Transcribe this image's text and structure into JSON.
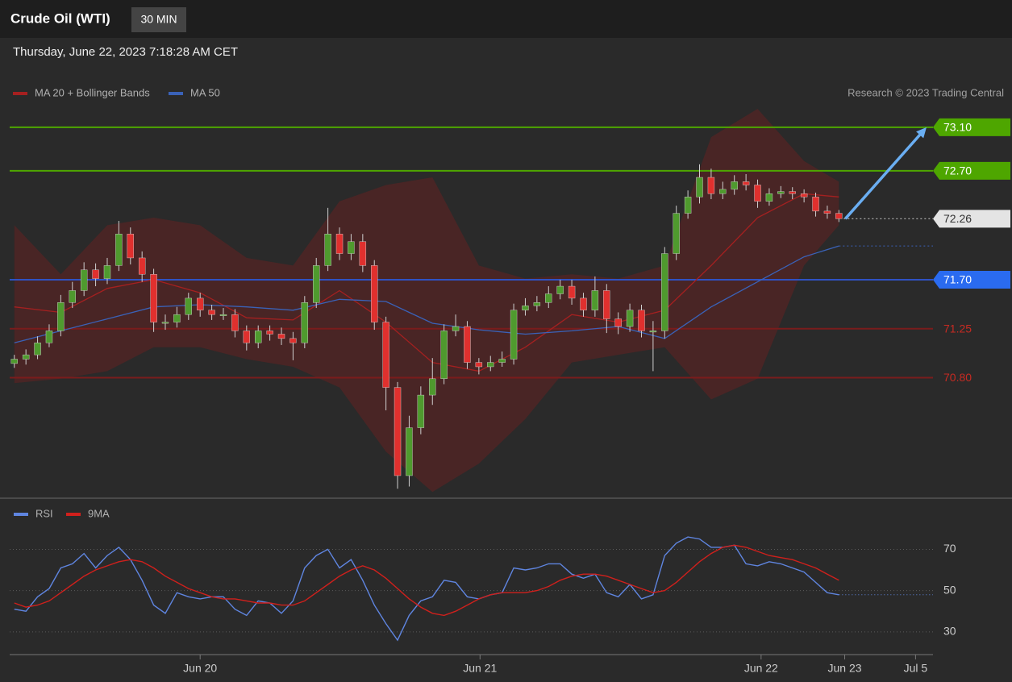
{
  "header": {
    "title": "Crude Oil (WTI)",
    "interval": "30 MIN",
    "timestamp": "Thursday, June 22, 2023 7:18:28 AM CET"
  },
  "chart_data": [
    {
      "type": "candlestick",
      "credit": "Research © 2023 Trading Central",
      "xlim": [
        -0.4,
        79.1
      ],
      "ylim": [
        69.7,
        73.64
      ],
      "up_color": "#4f9a2e",
      "down_color": "#e0302e",
      "wick_color": "#cfcfcf",
      "arrow_color": "#6aaef2",
      "x": [
        0,
        1,
        2,
        3,
        4,
        5,
        6,
        7,
        8,
        9,
        10,
        11,
        12,
        13,
        14,
        15,
        16,
        17,
        18,
        19,
        20,
        21,
        22,
        23,
        24,
        25,
        26,
        27,
        28,
        29,
        30,
        31,
        32,
        33,
        34,
        35,
        36,
        37,
        38,
        39,
        40,
        41,
        42,
        43,
        44,
        45,
        46,
        47,
        48,
        49,
        50,
        51,
        52,
        53,
        54,
        55,
        56,
        57,
        58,
        59,
        60,
        61,
        62,
        63,
        64,
        65,
        66,
        67,
        68,
        69,
        70,
        71
      ],
      "open": [
        70.93,
        70.97,
        71.01,
        71.12,
        71.23,
        71.49,
        71.6,
        71.79,
        71.71,
        71.83,
        72.12,
        71.9,
        71.75,
        71.31,
        71.31,
        71.38,
        71.53,
        71.42,
        71.38,
        71.38,
        71.23,
        71.12,
        71.23,
        71.2,
        71.16,
        71.12,
        71.49,
        71.83,
        72.12,
        71.94,
        72.05,
        71.83,
        71.31,
        70.71,
        69.9,
        70.34,
        70.64,
        70.79,
        71.23,
        71.27,
        70.94,
        70.9,
        70.94,
        70.97,
        71.42,
        71.46,
        71.49,
        71.57,
        71.64,
        71.53,
        71.42,
        71.6,
        71.34,
        71.27,
        71.42,
        71.23,
        71.23,
        71.94,
        72.31,
        72.46,
        72.64,
        72.49,
        72.53,
        72.6,
        72.57,
        72.42,
        72.49,
        72.51,
        72.49,
        72.46,
        72.33,
        72.31
      ],
      "high": [
        71.01,
        71.06,
        71.18,
        71.29,
        71.56,
        71.68,
        71.86,
        71.85,
        71.9,
        72.24,
        72.18,
        71.96,
        71.8,
        71.38,
        71.45,
        71.58,
        71.58,
        71.47,
        71.44,
        71.43,
        71.28,
        71.28,
        71.28,
        71.26,
        71.22,
        71.55,
        71.9,
        72.36,
        72.18,
        72.12,
        72.12,
        71.88,
        71.36,
        70.76,
        70.45,
        70.72,
        70.98,
        71.29,
        71.38,
        71.32,
        70.98,
        71.0,
        71.04,
        71.48,
        71.53,
        71.55,
        71.64,
        71.7,
        71.7,
        71.58,
        71.73,
        71.66,
        71.4,
        71.48,
        71.47,
        71.32,
        72.0,
        72.38,
        72.52,
        72.76,
        72.72,
        72.6,
        72.66,
        72.67,
        72.62,
        72.54,
        72.56,
        72.55,
        72.53,
        72.5,
        72.38,
        72.34
      ],
      "low": [
        70.89,
        70.92,
        70.97,
        71.08,
        71.18,
        71.44,
        71.55,
        71.64,
        71.66,
        71.78,
        71.84,
        71.68,
        71.22,
        71.24,
        71.26,
        71.33,
        71.36,
        71.33,
        71.33,
        71.17,
        71.05,
        71.07,
        71.14,
        71.1,
        70.96,
        71.07,
        71.44,
        71.78,
        71.88,
        71.88,
        71.77,
        71.24,
        70.5,
        69.78,
        69.8,
        70.28,
        70.55,
        70.74,
        71.18,
        70.88,
        70.83,
        70.86,
        70.9,
        70.92,
        71.37,
        71.41,
        71.44,
        71.52,
        71.47,
        71.36,
        71.36,
        71.21,
        71.2,
        71.22,
        71.17,
        70.86,
        71.16,
        71.88,
        72.26,
        72.4,
        72.44,
        72.44,
        72.48,
        72.52,
        72.36,
        72.38,
        72.45,
        72.44,
        72.41,
        72.28,
        72.26,
        72.23
      ],
      "close": [
        70.97,
        71.01,
        71.12,
        71.23,
        71.49,
        71.6,
        71.79,
        71.71,
        71.83,
        72.12,
        71.9,
        71.75,
        71.31,
        71.31,
        71.38,
        71.53,
        71.42,
        71.38,
        71.38,
        71.23,
        71.12,
        71.23,
        71.2,
        71.16,
        71.12,
        71.49,
        71.83,
        72.12,
        71.94,
        72.05,
        71.83,
        71.31,
        70.71,
        69.9,
        70.34,
        70.64,
        70.79,
        71.23,
        71.27,
        70.94,
        70.9,
        70.94,
        70.97,
        71.42,
        71.46,
        71.49,
        71.57,
        71.64,
        71.53,
        71.42,
        71.6,
        71.34,
        71.27,
        71.42,
        71.23,
        71.23,
        71.94,
        72.31,
        72.46,
        72.64,
        72.49,
        72.53,
        72.6,
        72.57,
        72.42,
        72.49,
        72.51,
        72.49,
        72.46,
        72.33,
        72.31,
        72.26
      ],
      "series": [
        {
          "name": "MA 20 + Bollinger Bands",
          "color": "#a52020",
          "band_color": "#6e1f1f",
          "x": [
            0,
            4,
            8,
            12,
            16,
            20,
            24,
            28,
            32,
            36,
            40,
            44,
            48,
            52,
            56,
            60,
            64,
            68,
            71
          ],
          "values": [
            71.45,
            71.4,
            71.62,
            71.7,
            71.58,
            71.35,
            71.33,
            71.6,
            71.31,
            70.94,
            70.86,
            71.08,
            71.38,
            71.31,
            71.42,
            71.83,
            72.27,
            72.49,
            72.46
          ],
          "upper": [
            72.2,
            71.75,
            72.2,
            72.27,
            72.2,
            71.9,
            71.83,
            72.42,
            72.57,
            72.64,
            71.83,
            71.71,
            71.75,
            71.71,
            71.83,
            73.01,
            73.27,
            72.79,
            72.6
          ],
          "lower": [
            70.75,
            70.79,
            70.86,
            71.08,
            71.08,
            70.97,
            70.9,
            70.71,
            70.12,
            69.75,
            70.01,
            70.42,
            70.94,
            71.01,
            71.08,
            70.6,
            70.79,
            71.83,
            72.2
          ]
        },
        {
          "name": "MA 50",
          "color": "#3a62b8",
          "extend": true,
          "x": [
            0,
            4,
            8,
            12,
            16,
            20,
            24,
            28,
            32,
            36,
            40,
            44,
            48,
            52,
            56,
            60,
            64,
            68,
            71
          ],
          "values": [
            71.12,
            71.23,
            71.34,
            71.45,
            71.47,
            71.45,
            71.42,
            71.52,
            71.5,
            71.3,
            71.24,
            71.2,
            71.23,
            71.27,
            71.16,
            71.45,
            71.68,
            71.91,
            72.01
          ]
        }
      ],
      "levels": [
        {
          "value": 73.1,
          "label": "73.10",
          "color": "#4ea600",
          "label_fill": "#4ea600",
          "text_color": "#ffffff"
        },
        {
          "value": 72.7,
          "label": "72.70",
          "color": "#4ea600",
          "label_fill": "#4ea600",
          "text_color": "#ffffff"
        },
        {
          "value": 72.26,
          "label": "72.26",
          "color": "#bbbbbb",
          "label_fill": "#e4e4e4",
          "text_color": "#333333",
          "dash": true
        },
        {
          "value": 71.7,
          "label": "71.70",
          "color": "#2f52c4",
          "label_fill": "#2a6bf0",
          "text_color": "#ffffff"
        },
        {
          "value": 71.25,
          "label": "71.25",
          "color": "#7a1c1c",
          "text_color": "#c62a22"
        },
        {
          "value": 70.8,
          "label": "70.80",
          "color": "#7a1c1c",
          "text_color": "#c62a22"
        }
      ]
    },
    {
      "type": "line",
      "xlim": [
        -0.4,
        79.1
      ],
      "ylim": [
        19,
        94
      ],
      "yticks": [
        30,
        50,
        70
      ],
      "xticks": [
        {
          "value": 16,
          "label": "Jun 20"
        },
        {
          "value": 40.1,
          "label": "Jun 21"
        },
        {
          "value": 64.3,
          "label": "Jun 22"
        },
        {
          "value": 71.5,
          "label": "Jun 23"
        },
        {
          "value": 77.6,
          "label": "Jul 5"
        }
      ],
      "x": [
        0,
        1,
        2,
        3,
        4,
        5,
        6,
        7,
        8,
        9,
        10,
        11,
        12,
        13,
        14,
        15,
        16,
        17,
        18,
        19,
        20,
        21,
        22,
        23,
        24,
        25,
        26,
        27,
        28,
        29,
        30,
        31,
        32,
        33,
        34,
        35,
        36,
        37,
        38,
        39,
        40,
        41,
        42,
        43,
        44,
        45,
        46,
        47,
        48,
        49,
        50,
        51,
        52,
        53,
        54,
        55,
        56,
        57,
        58,
        59,
        60,
        61,
        62,
        63,
        64,
        65,
        66,
        67,
        68,
        69,
        70,
        71
      ],
      "series": [
        {
          "name": "RSI",
          "color": "#5f85e0",
          "extend": true,
          "values": [
            41,
            40,
            47,
            51,
            61,
            63,
            68,
            61,
            67,
            71,
            65,
            55,
            43,
            39,
            49,
            47,
            46,
            47,
            47,
            41,
            38,
            45,
            44,
            39,
            45,
            61,
            67,
            70,
            61,
            65,
            55,
            43,
            34,
            26,
            38,
            45,
            47,
            55,
            54,
            47,
            46,
            48,
            49,
            61,
            60,
            61,
            63,
            63,
            58,
            56,
            58,
            49,
            47,
            53,
            46,
            48,
            67,
            73,
            76,
            75,
            71,
            71,
            72,
            63,
            62,
            64,
            63,
            61,
            59,
            54,
            49,
            48
          ]
        },
        {
          "name": "9MA",
          "color": "#d0201c",
          "values": [
            44,
            42,
            43,
            45,
            49,
            53,
            57,
            60,
            62,
            64,
            65,
            64,
            61,
            57,
            54,
            51,
            49,
            47,
            46,
            46,
            45,
            44,
            44,
            43,
            43,
            45,
            49,
            53,
            57,
            60,
            62,
            60,
            56,
            51,
            46,
            42,
            39,
            38,
            40,
            43,
            46,
            48,
            49,
            49,
            49,
            50,
            52,
            55,
            57,
            58,
            58,
            57,
            55,
            53,
            51,
            49,
            50,
            54,
            59,
            64,
            68,
            71,
            72,
            71,
            69,
            67,
            66,
            65,
            63,
            61,
            58,
            55
          ]
        }
      ]
    }
  ]
}
